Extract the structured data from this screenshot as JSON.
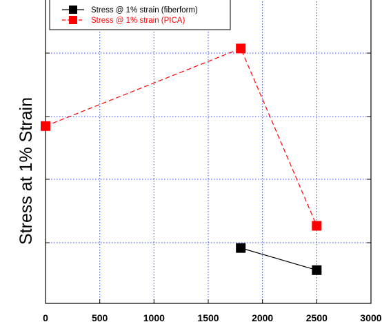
{
  "chart_data": {
    "type": "line",
    "xlabel": "",
    "ylabel": "Stress at 1% Strain",
    "xlim": [
      0,
      3000
    ],
    "x_ticks": [
      "0",
      "500",
      "1000",
      "1500",
      "2000",
      "2500",
      "3000"
    ],
    "y_ticks_labeled": false,
    "grid": true,
    "grid_style": "dotted-blue",
    "legend_position": "top-left",
    "series": [
      {
        "name": "Stress @ 1% strain (fiberform)",
        "color": "#000000",
        "line_style": "solid",
        "marker": "square",
        "points": [
          {
            "x": 1800,
            "y": 1.0
          },
          {
            "x": 2500,
            "y": 0.6
          }
        ]
      },
      {
        "name": "Stress @ 1% strain (PICA)",
        "color": "#ff0000",
        "line_style": "dashed",
        "marker": "square",
        "points": [
          {
            "x": 0,
            "y": 3.2
          },
          {
            "x": 1800,
            "y": 4.6
          },
          {
            "x": 2500,
            "y": 1.4
          }
        ]
      }
    ]
  }
}
